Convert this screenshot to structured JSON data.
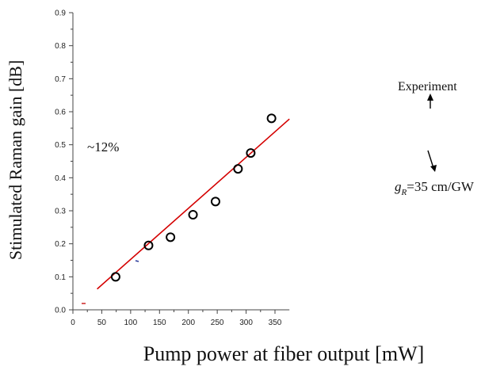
{
  "chart_data": {
    "type": "scatter",
    "title": "",
    "xlabel": "Pump power at fiber output [mW]",
    "ylabel": "Stimulated Raman gain [dB]",
    "xlim": [
      0,
      375
    ],
    "ylim": [
      0,
      0.9
    ],
    "x_ticks": [
      0,
      50,
      100,
      150,
      200,
      250,
      300,
      350
    ],
    "y_ticks": [
      0.0,
      0.1,
      0.2,
      0.3,
      0.4,
      0.5,
      0.6,
      0.7,
      0.8,
      0.9
    ],
    "x_tick_labels": [
      "0",
      "50",
      "100",
      "150",
      "200",
      "250",
      "300",
      "350"
    ],
    "y_tick_labels": [
      "0.0",
      "0.1",
      "0.2",
      "0.3",
      "0.4",
      "0.5",
      "0.6",
      "0.7",
      "0.8",
      "0.9"
    ],
    "grid": false,
    "series": [
      {
        "name": "Experiment",
        "kind": "scatter",
        "marker": "open-circle",
        "color": "#000000",
        "x": [
          74,
          131,
          169,
          208,
          247,
          286,
          308,
          344
        ],
        "y": [
          0.1,
          0.195,
          0.22,
          0.288,
          0.328,
          0.427,
          0.475,
          0.58
        ]
      },
      {
        "name": "gR=35 cm/GW",
        "kind": "line",
        "color": "#d40000",
        "x": [
          42,
          375
        ],
        "y": [
          0.063,
          0.578
        ]
      }
    ],
    "annotations": {
      "percent_note": "~12%",
      "experiment_label": "Experiment",
      "fit_label_prefix": "g",
      "fit_label_subscript": "R",
      "fit_label_suffix": "=35 cm/GW"
    }
  }
}
